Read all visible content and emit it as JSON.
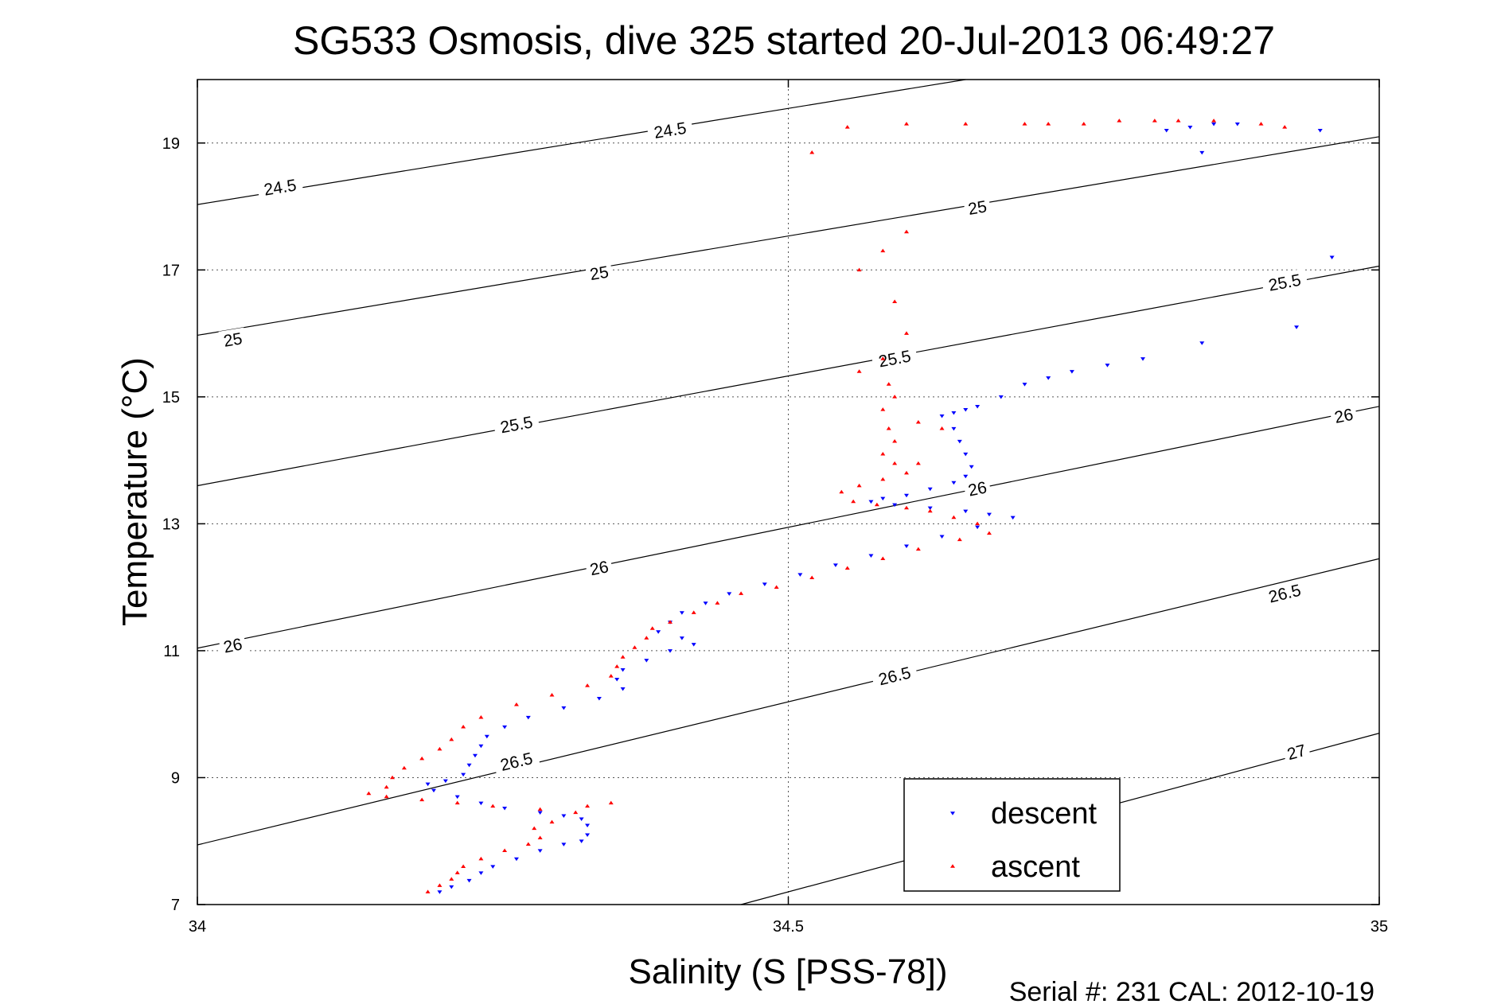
{
  "chart_data": {
    "type": "scatter",
    "title": "SG533 Osmosis, dive 325 started 20-Jul-2013 06:49:27",
    "xlabel": "Salinity (S [PSS-78])",
    "ylabel": "Temperature (°C)",
    "xlim": [
      34,
      35
    ],
    "ylim": [
      7,
      20
    ],
    "xticks": [
      34,
      34.5,
      35
    ],
    "yticks": [
      7,
      9,
      11,
      13,
      15,
      17,
      19
    ],
    "grid": true,
    "legend_position": "bottom-right",
    "footer": "Serial #: 231  CAL: 2012-10-19",
    "series": [
      {
        "name": "descent",
        "color": "#0000ff",
        "marker": "triangle-down",
        "points": [
          [
            34.96,
            17.2
          ],
          [
            34.93,
            16.1
          ],
          [
            34.85,
            15.85
          ],
          [
            34.8,
            15.6
          ],
          [
            34.77,
            15.5
          ],
          [
            34.74,
            15.4
          ],
          [
            34.72,
            15.3
          ],
          [
            34.7,
            15.2
          ],
          [
            34.68,
            15.0
          ],
          [
            34.66,
            14.85
          ],
          [
            34.65,
            14.8
          ],
          [
            34.64,
            14.75
          ],
          [
            34.63,
            14.7
          ],
          [
            34.64,
            14.5
          ],
          [
            34.645,
            14.3
          ],
          [
            34.65,
            14.1
          ],
          [
            34.655,
            13.9
          ],
          [
            34.65,
            13.75
          ],
          [
            34.64,
            13.65
          ],
          [
            34.62,
            13.55
          ],
          [
            34.6,
            13.45
          ],
          [
            34.58,
            13.4
          ],
          [
            34.57,
            13.35
          ],
          [
            34.59,
            13.3
          ],
          [
            34.62,
            13.25
          ],
          [
            34.65,
            13.2
          ],
          [
            34.67,
            13.15
          ],
          [
            34.69,
            13.1
          ],
          [
            34.66,
            12.95
          ],
          [
            34.63,
            12.8
          ],
          [
            34.6,
            12.65
          ],
          [
            34.57,
            12.5
          ],
          [
            34.54,
            12.35
          ],
          [
            34.51,
            12.2
          ],
          [
            34.48,
            12.05
          ],
          [
            34.45,
            11.9
          ],
          [
            34.43,
            11.75
          ],
          [
            34.41,
            11.6
          ],
          [
            34.4,
            11.45
          ],
          [
            34.39,
            11.3
          ],
          [
            34.41,
            11.2
          ],
          [
            34.42,
            11.1
          ],
          [
            34.4,
            11.0
          ],
          [
            34.38,
            10.85
          ],
          [
            34.36,
            10.7
          ],
          [
            34.355,
            10.55
          ],
          [
            34.36,
            10.4
          ],
          [
            34.34,
            10.25
          ],
          [
            34.31,
            10.1
          ],
          [
            34.28,
            9.95
          ],
          [
            34.26,
            9.8
          ],
          [
            34.245,
            9.65
          ],
          [
            34.24,
            9.5
          ],
          [
            34.235,
            9.35
          ],
          [
            34.23,
            9.2
          ],
          [
            34.225,
            9.05
          ],
          [
            34.21,
            8.95
          ],
          [
            34.195,
            8.9
          ],
          [
            34.2,
            8.8
          ],
          [
            34.22,
            8.7
          ],
          [
            34.24,
            8.6
          ],
          [
            34.26,
            8.52
          ],
          [
            34.29,
            8.45
          ],
          [
            34.31,
            8.4
          ],
          [
            34.325,
            8.35
          ],
          [
            34.33,
            8.25
          ],
          [
            34.33,
            8.1
          ],
          [
            34.325,
            8.0
          ],
          [
            34.31,
            7.95
          ],
          [
            34.29,
            7.85
          ],
          [
            34.27,
            7.72
          ],
          [
            34.25,
            7.6
          ],
          [
            34.24,
            7.5
          ],
          [
            34.23,
            7.38
          ],
          [
            34.215,
            7.28
          ],
          [
            34.205,
            7.2
          ],
          [
            34.82,
            19.2
          ],
          [
            34.84,
            19.25
          ],
          [
            34.86,
            19.3
          ],
          [
            34.88,
            19.3
          ],
          [
            34.95,
            19.2
          ],
          [
            34.85,
            18.85
          ]
        ]
      },
      {
        "name": "ascent",
        "color": "#ff0000",
        "marker": "triangle-up",
        "points": [
          [
            34.52,
            18.85
          ],
          [
            34.55,
            19.25
          ],
          [
            34.6,
            19.3
          ],
          [
            34.65,
            19.3
          ],
          [
            34.7,
            19.3
          ],
          [
            34.72,
            19.3
          ],
          [
            34.75,
            19.3
          ],
          [
            34.78,
            19.35
          ],
          [
            34.81,
            19.35
          ],
          [
            34.83,
            19.35
          ],
          [
            34.86,
            19.35
          ],
          [
            34.9,
            19.3
          ],
          [
            34.92,
            19.25
          ],
          [
            34.6,
            17.6
          ],
          [
            34.58,
            17.3
          ],
          [
            34.56,
            17.0
          ],
          [
            34.59,
            16.5
          ],
          [
            34.6,
            16.0
          ],
          [
            34.58,
            15.6
          ],
          [
            34.56,
            15.4
          ],
          [
            34.585,
            15.2
          ],
          [
            34.59,
            15.0
          ],
          [
            34.58,
            14.8
          ],
          [
            34.585,
            14.5
          ],
          [
            34.61,
            14.6
          ],
          [
            34.63,
            14.5
          ],
          [
            34.59,
            14.3
          ],
          [
            34.58,
            14.1
          ],
          [
            34.59,
            13.95
          ],
          [
            34.61,
            13.95
          ],
          [
            34.6,
            13.8
          ],
          [
            34.58,
            13.7
          ],
          [
            34.56,
            13.6
          ],
          [
            34.545,
            13.5
          ],
          [
            34.555,
            13.35
          ],
          [
            34.575,
            13.3
          ],
          [
            34.6,
            13.25
          ],
          [
            34.62,
            13.2
          ],
          [
            34.64,
            13.1
          ],
          [
            34.66,
            13.0
          ],
          [
            34.67,
            12.85
          ],
          [
            34.645,
            12.75
          ],
          [
            34.61,
            12.6
          ],
          [
            34.58,
            12.45
          ],
          [
            34.55,
            12.3
          ],
          [
            34.52,
            12.15
          ],
          [
            34.49,
            12.0
          ],
          [
            34.46,
            11.9
          ],
          [
            34.44,
            11.75
          ],
          [
            34.42,
            11.6
          ],
          [
            34.4,
            11.45
          ],
          [
            34.385,
            11.35
          ],
          [
            34.38,
            11.2
          ],
          [
            34.37,
            11.05
          ],
          [
            34.36,
            10.9
          ],
          [
            34.355,
            10.75
          ],
          [
            34.35,
            10.6
          ],
          [
            34.33,
            10.45
          ],
          [
            34.3,
            10.3
          ],
          [
            34.27,
            10.15
          ],
          [
            34.24,
            9.95
          ],
          [
            34.225,
            9.8
          ],
          [
            34.215,
            9.6
          ],
          [
            34.205,
            9.45
          ],
          [
            34.19,
            9.3
          ],
          [
            34.175,
            9.15
          ],
          [
            34.165,
            9.0
          ],
          [
            34.16,
            8.85
          ],
          [
            34.145,
            8.75
          ],
          [
            34.16,
            8.7
          ],
          [
            34.19,
            8.65
          ],
          [
            34.22,
            8.6
          ],
          [
            34.25,
            8.55
          ],
          [
            34.29,
            8.5
          ],
          [
            34.32,
            8.45
          ],
          [
            34.33,
            8.55
          ],
          [
            34.35,
            8.6
          ],
          [
            34.3,
            8.3
          ],
          [
            34.285,
            8.2
          ],
          [
            34.29,
            8.05
          ],
          [
            34.28,
            7.95
          ],
          [
            34.26,
            7.85
          ],
          [
            34.24,
            7.72
          ],
          [
            34.225,
            7.6
          ],
          [
            34.22,
            7.5
          ],
          [
            34.215,
            7.4
          ],
          [
            34.205,
            7.3
          ],
          [
            34.195,
            7.2
          ]
        ]
      }
    ],
    "contours": [
      {
        "value": "24.5",
        "x1": 34,
        "y1": 18.03,
        "x2": 34.65,
        "y2": 20.0
      },
      {
        "value": "25",
        "x1": 34,
        "y1": 15.97,
        "x2": 35,
        "y2": 19.1
      },
      {
        "value": "25.5",
        "x1": 34,
        "y1": 13.6,
        "x2": 35,
        "y2": 17.06
      },
      {
        "value": "26",
        "x1": 34,
        "y1": 11.04,
        "x2": 35,
        "y2": 14.85
      },
      {
        "value": "26.5",
        "x1": 34,
        "y1": 7.94,
        "x2": 35,
        "y2": 12.45
      },
      {
        "value": "27",
        "x1": 34.46,
        "y1": 7.0,
        "x2": 35,
        "y2": 9.7
      }
    ],
    "contour_labels": [
      {
        "text": "24.5",
        "x": 34.07,
        "y": 18.3
      },
      {
        "text": "24.5",
        "x": 34.4,
        "y": 19.2
      },
      {
        "text": "25",
        "x": 34.03,
        "y": 15.9
      },
      {
        "text": "25",
        "x": 34.34,
        "y": 16.95
      },
      {
        "text": "25",
        "x": 34.66,
        "y": 17.98
      },
      {
        "text": "25.5",
        "x": 34.27,
        "y": 14.56
      },
      {
        "text": "25.5",
        "x": 34.59,
        "y": 15.6
      },
      {
        "text": "25.5",
        "x": 34.92,
        "y": 16.8
      },
      {
        "text": "26",
        "x": 34.03,
        "y": 11.08
      },
      {
        "text": "26",
        "x": 34.34,
        "y": 12.3
      },
      {
        "text": "26",
        "x": 34.66,
        "y": 13.55
      },
      {
        "text": "26",
        "x": 34.97,
        "y": 14.7
      },
      {
        "text": "26.5",
        "x": 34.27,
        "y": 9.25
      },
      {
        "text": "26.5",
        "x": 34.59,
        "y": 10.6
      },
      {
        "text": "26.5",
        "x": 34.92,
        "y": 11.9
      },
      {
        "text": "27",
        "x": 34.93,
        "y": 9.4
      }
    ]
  }
}
